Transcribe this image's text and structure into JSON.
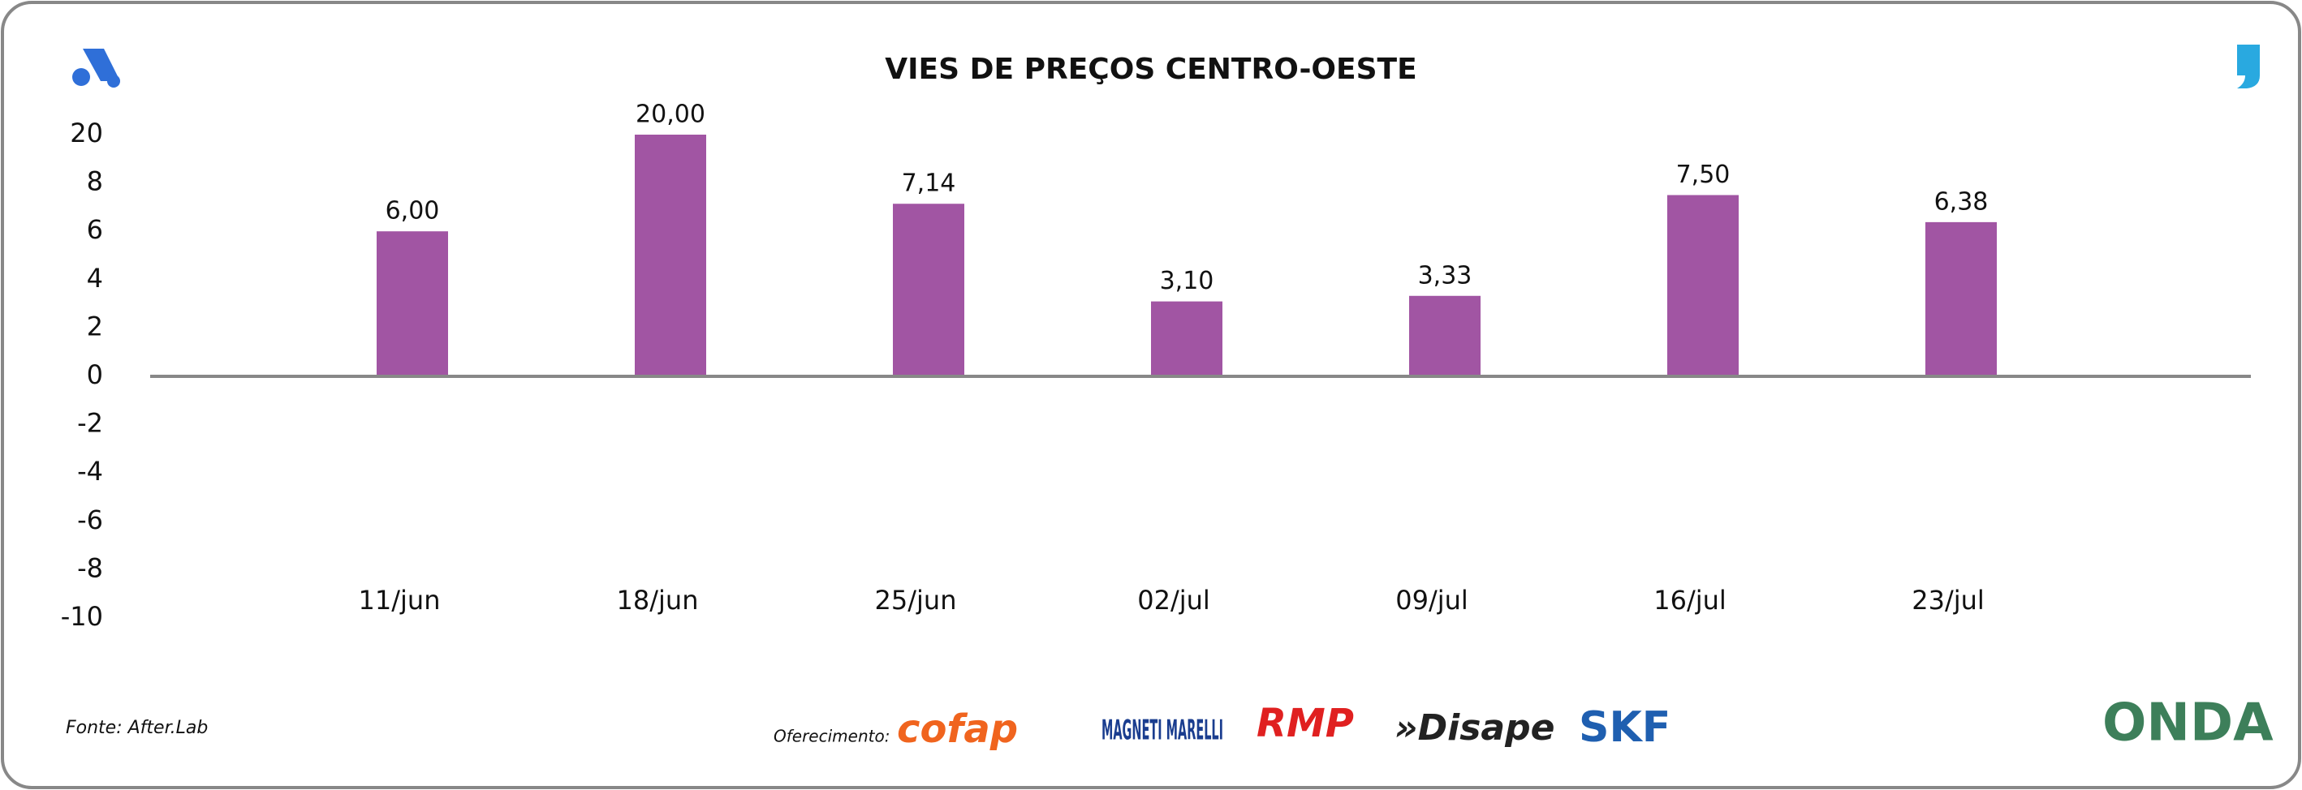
{
  "chart_data": {
    "type": "bar",
    "title": "VIES DE PREÇOS CENTRO-OESTE",
    "categories": [
      "11/jun",
      "18/jun",
      "25/jun",
      "02/jul",
      "09/jul",
      "16/jul",
      "23/jul"
    ],
    "values": [
      6.0,
      20.0,
      7.14,
      3.1,
      3.33,
      7.5,
      6.38
    ],
    "value_labels": [
      "6,00",
      "20,00",
      "7,14",
      "3,10",
      "3,33",
      "7,50",
      "6,38"
    ],
    "color": "#a155a3",
    "ylim": [
      -10,
      20
    ],
    "yticks": [
      20,
      8,
      6,
      4,
      2,
      0,
      -2,
      -4,
      -6,
      -8,
      -10
    ],
    "grid": false
  },
  "source": "Fonte: After.Lab",
  "sponsor_label": "Oferecimento:",
  "sponsors": [
    "cofap",
    "MAGNETI MARELLI",
    "RMP",
    "»Disape",
    "SKF",
    "ONDA"
  ]
}
